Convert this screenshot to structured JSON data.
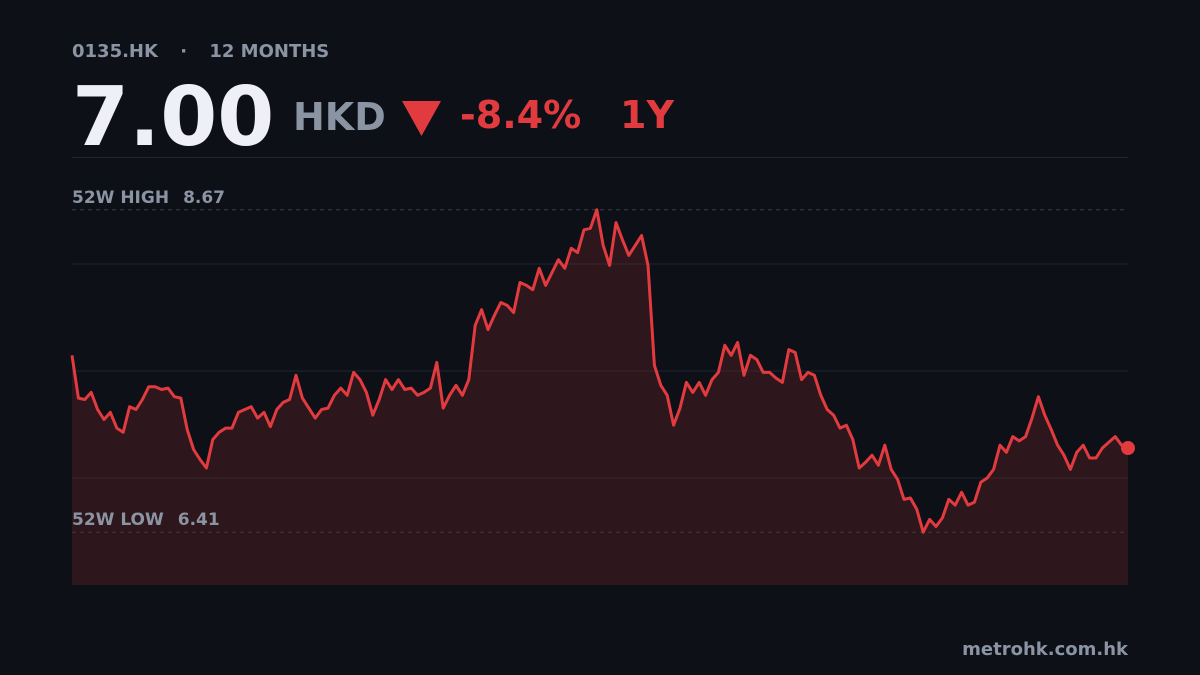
{
  "header": {
    "ticker": "0135.HK",
    "separator": "·",
    "period": "12 MONTHS",
    "price": "7.00",
    "currency": "HKD",
    "change": "-8.4%",
    "range": "1Y"
  },
  "chart_data": {
    "type": "area",
    "color": "#e23b3f",
    "values": [
      7.65,
      7.35,
      7.34,
      7.39,
      7.27,
      7.2,
      7.25,
      7.14,
      7.11,
      7.29,
      7.27,
      7.34,
      7.43,
      7.43,
      7.41,
      7.42,
      7.36,
      7.35,
      7.13,
      6.99,
      6.92,
      6.86,
      7.06,
      7.11,
      7.14,
      7.14,
      7.25,
      7.27,
      7.29,
      7.21,
      7.25,
      7.15,
      7.27,
      7.32,
      7.34,
      7.51,
      7.35,
      7.28,
      7.21,
      7.27,
      7.28,
      7.37,
      7.42,
      7.37,
      7.53,
      7.48,
      7.39,
      7.23,
      7.34,
      7.48,
      7.41,
      7.48,
      7.41,
      7.42,
      7.37,
      7.39,
      7.42,
      7.6,
      7.28,
      7.37,
      7.44,
      7.37,
      7.48,
      7.86,
      7.97,
      7.83,
      7.93,
      8.02,
      8.0,
      7.95,
      8.16,
      8.14,
      8.11,
      8.26,
      8.14,
      8.23,
      8.32,
      8.26,
      8.4,
      8.37,
      8.53,
      8.54,
      8.67,
      8.42,
      8.28,
      8.58,
      8.46,
      8.35,
      8.42,
      8.49,
      8.28,
      7.58,
      7.44,
      7.37,
      7.16,
      7.28,
      7.46,
      7.39,
      7.46,
      7.37,
      7.48,
      7.53,
      7.72,
      7.65,
      7.74,
      7.51,
      7.65,
      7.62,
      7.53,
      7.53,
      7.49,
      7.46,
      7.69,
      7.67,
      7.48,
      7.53,
      7.51,
      7.37,
      7.27,
      7.23,
      7.14,
      7.16,
      7.06,
      6.86,
      6.9,
      6.95,
      6.88,
      7.02,
      6.85,
      6.78,
      6.64,
      6.65,
      6.57,
      6.41,
      6.5,
      6.45,
      6.51,
      6.64,
      6.6,
      6.69,
      6.6,
      6.62,
      6.76,
      6.79,
      6.85,
      7.02,
      6.97,
      7.08,
      7.05,
      7.08,
      7.21,
      7.36,
      7.23,
      7.13,
      7.02,
      6.95,
      6.85,
      6.97,
      7.02,
      6.93,
      6.93,
      7.0,
      7.04,
      7.08,
      7.02,
      7.0
    ],
    "ylim": [
      6.04,
      9.04
    ],
    "yticks": [
      6.79,
      7.54,
      8.29
    ],
    "grid": true,
    "reference_lines": [
      {
        "label": "52W HIGH",
        "value": 8.67
      },
      {
        "label": "52W LOW",
        "value": 6.41
      }
    ]
  },
  "footer": "metrohk.com.hk"
}
